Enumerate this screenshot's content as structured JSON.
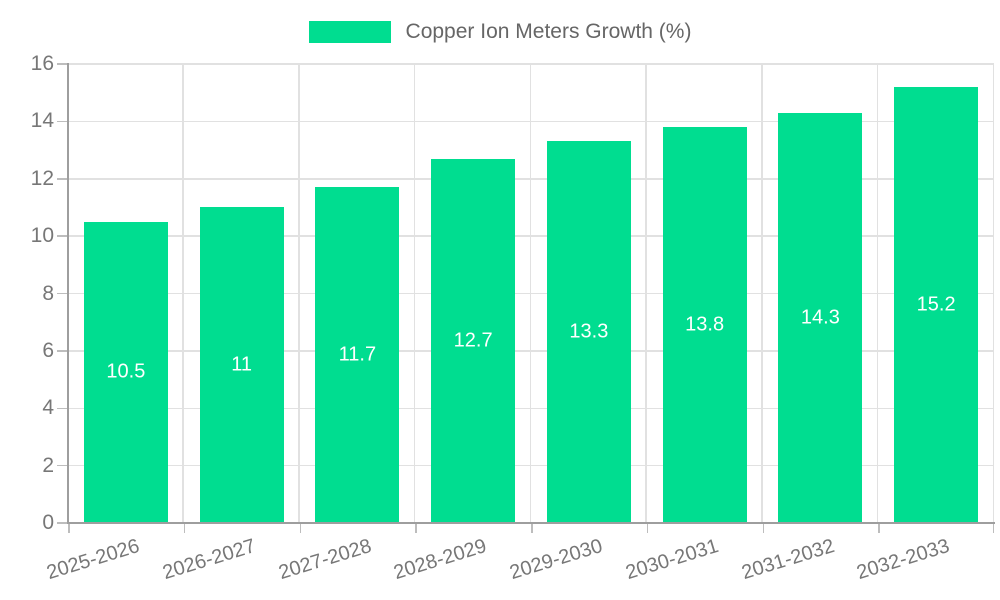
{
  "chart_data": {
    "type": "bar",
    "legend": "Copper Ion Meters Growth (%)",
    "categories": [
      "2025-2026",
      "2026-2027",
      "2027-2028",
      "2028-2029",
      "2029-2030",
      "2030-2031",
      "2031-2032",
      "2032-2033"
    ],
    "values": [
      10.5,
      11,
      11.7,
      12.7,
      13.3,
      13.8,
      14.3,
      15.2
    ],
    "value_labels": [
      "10.5",
      "11",
      "11.7",
      "12.7",
      "13.3",
      "13.8",
      "14.3",
      "15.2"
    ],
    "ylim": [
      0,
      16
    ],
    "yticks": [
      0,
      2,
      4,
      6,
      8,
      10,
      12,
      14,
      16
    ],
    "grid": true,
    "legend_position": "top-center",
    "xlabel": "",
    "ylabel": "",
    "colors": {
      "bar": "#00DD90",
      "grid": "#E1E1E1",
      "axis": "#9E9E9E",
      "tick": "#BDBDBD",
      "axis_text": "#777777",
      "legend_text": "#666666",
      "value_text": "#FFFFFF",
      "background": "#FFFFFF"
    }
  }
}
